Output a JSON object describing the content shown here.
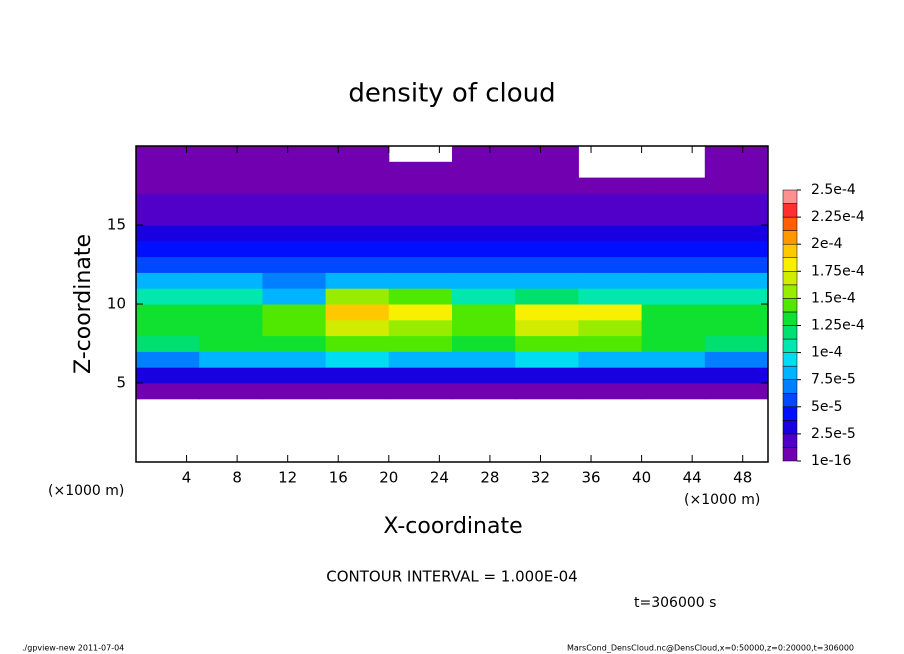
{
  "chart_data": {
    "type": "heatmap",
    "title": "density of cloud",
    "xlabel": "X-coordinate",
    "ylabel": "Z-coordinate",
    "x_unit": "(×1000 m)",
    "y_unit": "(×1000 m)",
    "contour_note": "CONTOUR INTERVAL = 1.000E-04",
    "time_note": "t=306000 s",
    "footer_left": "./gpview-new  2011-07-04",
    "footer_right": "MarsCond_DensCloud.nc@DensCloud,x=0:50000,z=0:20000,t=306000",
    "x": [
      2.5,
      7.5,
      12.5,
      17.5,
      22.5,
      27.5,
      32.5,
      37.5,
      42.5,
      47.5
    ],
    "z": [
      4.5,
      5.5,
      6.5,
      7.5,
      8.5,
      9.5,
      10.5,
      11.5,
      12.5,
      13.5,
      14.5,
      15.5,
      16.5,
      17.5,
      18.5,
      19.5
    ],
    "values": [
      [
        8e-06,
        8e-06,
        8e-06,
        8e-06,
        8e-06,
        8e-06,
        8e-06,
        8e-06,
        8e-06,
        8e-06
      ],
      [
        3e-05,
        3.2e-05,
        3e-05,
        3.5e-05,
        3.2e-05,
        3e-05,
        3.5e-05,
        3.2e-05,
        3e-05,
        3e-05
      ],
      [
        7e-05,
        7.5e-05,
        8e-05,
        9e-05,
        8.5e-05,
        7.5e-05,
        9e-05,
        8.5e-05,
        7.5e-05,
        7e-05
      ],
      [
        0.00012,
        0.000125,
        0.00013,
        0.000145,
        0.00014,
        0.00013,
        0.000145,
        0.00014,
        0.000125,
        0.00012
      ],
      [
        0.00013,
        0.000135,
        0.00014,
        0.00017,
        0.00016,
        0.00014,
        0.00017,
        0.00016,
        0.000135,
        0.00013
      ],
      [
        0.000125,
        0.00013,
        0.00014,
        0.00019,
        0.00018,
        0.00014,
        0.000185,
        0.00018,
        0.00013,
        0.000125
      ],
      [
        0.000105,
        0.0001,
        8e-05,
        0.00016,
        0.00014,
        0.00011,
        0.00012,
        0.00011,
        0.0001,
        0.000105
      ],
      [
        8e-05,
        7.5e-05,
        7e-05,
        8.5e-05,
        8e-05,
        8e-05,
        8e-05,
        8e-05,
        7.5e-05,
        8e-05
      ],
      [
        6e-05,
        6e-05,
        6e-05,
        6e-05,
        6e-05,
        6e-05,
        6e-05,
        6e-05,
        6e-05,
        6e-05
      ],
      [
        4e-05,
        4e-05,
        4e-05,
        4e-05,
        4e-05,
        4e-05,
        4e-05,
        4e-05,
        4e-05,
        4e-05
      ],
      [
        2.8e-05,
        2.8e-05,
        2.8e-05,
        2.8e-05,
        2.8e-05,
        2.8e-05,
        2.8e-05,
        2.8e-05,
        2.8e-05,
        2.8e-05
      ],
      [
        2.2e-05,
        2.2e-05,
        2.2e-05,
        2.2e-05,
        2.2e-05,
        2.2e-05,
        2.2e-05,
        2.2e-05,
        2.2e-05,
        2.2e-05
      ],
      [
        1.5e-05,
        1.5e-05,
        1.5e-05,
        1.5e-05,
        1.5e-05,
        1.5e-05,
        1.5e-05,
        1.5e-05,
        1.5e-05,
        1.5e-05
      ],
      [
        8e-06,
        8e-06,
        8e-06,
        8e-06,
        8e-06,
        8e-06,
        8e-06,
        8e-06,
        8e-06,
        8e-06
      ],
      [
        5e-06,
        5e-06,
        5e-06,
        5e-06,
        5e-06,
        5e-06,
        5e-06,
        null,
        null,
        5e-06
      ],
      [
        3e-06,
        3e-06,
        3e-06,
        3e-06,
        null,
        3e-06,
        3e-06,
        null,
        null,
        3e-06
      ]
    ],
    "xlim": [
      0,
      50
    ],
    "ylim": [
      0,
      20
    ],
    "xticks": [
      4,
      8,
      12,
      16,
      20,
      24,
      28,
      32,
      36,
      40,
      44,
      48
    ],
    "yticks": [
      5,
      10,
      15
    ],
    "colors": [
      "#7000b0",
      "#5000c8",
      "#1800e0",
      "#0010ff",
      "#0048ff",
      "#0080ff",
      "#00b4ff",
      "#00dcf0",
      "#00e8b0",
      "#00e070",
      "#10e030",
      "#50e800",
      "#98ec00",
      "#d0ec00",
      "#f8f000",
      "#ffc800",
      "#ff9800",
      "#ff6000",
      "#ff3030",
      "#ff9090"
    ],
    "cticks": [
      {
        "value": 1e-16,
        "label": "1e-16"
      },
      {
        "value": 2.5e-05,
        "label": "2.5e-5"
      },
      {
        "value": 5e-05,
        "label": "5e-5"
      },
      {
        "value": 7.5e-05,
        "label": "7.5e-5"
      },
      {
        "value": 0.0001,
        "label": "1e-4"
      },
      {
        "value": 0.000125,
        "label": "1.25e-4"
      },
      {
        "value": 0.00015,
        "label": "1.5e-4"
      },
      {
        "value": 0.000175,
        "label": "1.75e-4"
      },
      {
        "value": 0.0002,
        "label": "2e-4"
      },
      {
        "value": 0.000225,
        "label": "2.25e-4"
      },
      {
        "value": 0.00025,
        "label": "2.5e-4"
      }
    ]
  }
}
